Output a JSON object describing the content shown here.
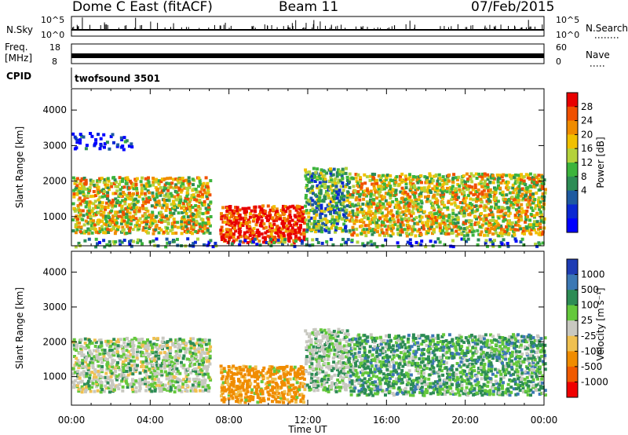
{
  "header": {
    "station": "Dome C East (fitACF)",
    "beam": "Beam 11",
    "date": "07/Feb/2015"
  },
  "strips": {
    "nsky_label": "N.Sky",
    "nsky_ticks": [
      "10^5",
      "10^0"
    ],
    "nsky_right_ticks": [
      "10^5",
      "10^0"
    ],
    "nsearch_label": "N.Search",
    "freq_label": "Freq.",
    "freq_unit": "[MHz]",
    "freq_ticks": [
      "18",
      "8"
    ],
    "nave_label": "Nave",
    "nave_ticks": [
      "60",
      "0"
    ],
    "cpid_label": "CPID",
    "cpid_value": "twofsound 3501"
  },
  "chart_data": [
    {
      "type": "heatmap",
      "name": "power",
      "ylabel": "Slant Range [km]",
      "xlabel": "Time UT",
      "x_ticks": [
        "00:00",
        "04:00",
        "08:00",
        "12:00",
        "16:00",
        "20:00",
        "00:00"
      ],
      "xlim_hours": [
        0,
        24
      ],
      "y_ticks": [
        "1000",
        "2000",
        "3000",
        "4000"
      ],
      "ylim_km": [
        180,
        4600
      ],
      "colorbar_label": "Power [dB]",
      "colorbar_ticks": [
        "28",
        "24",
        "20",
        "16",
        "12",
        "8",
        "4"
      ],
      "colorbar_colors": [
        "#e80000",
        "#f05000",
        "#f08c00",
        "#f0c000",
        "#b4d23c",
        "#3cb43c",
        "#2d8c55",
        "#1e5aa0",
        "#0a28d2",
        "#0000ff"
      ],
      "echo_regions": [
        {
          "t0": 0.0,
          "t1": 7.0,
          "r0": 560,
          "r1": 2150,
          "level": 0.62
        },
        {
          "t0": 7.5,
          "t1": 11.8,
          "r0": 300,
          "r1": 1350,
          "level": 0.95
        },
        {
          "t0": 11.8,
          "t1": 14.0,
          "r0": 600,
          "r1": 2400,
          "level": 0.4
        },
        {
          "t0": 14.0,
          "t1": 24.0,
          "r0": 500,
          "r1": 2250,
          "level": 0.6
        },
        {
          "t0": 0.0,
          "t1": 3.0,
          "r0": 2900,
          "r1": 3400,
          "level": 0.15
        },
        {
          "t0": 0.0,
          "t1": 24.0,
          "r0": 190,
          "r1": 420,
          "level": 0.3
        }
      ]
    },
    {
      "type": "heatmap",
      "name": "velocity",
      "ylabel": "Slant Range [km]",
      "xlabel": "Time UT",
      "x_ticks": [
        "00:00",
        "04:00",
        "08:00",
        "12:00",
        "16:00",
        "20:00",
        "00:00"
      ],
      "xlim_hours": [
        0,
        24
      ],
      "y_ticks": [
        "1000",
        "2000",
        "3000",
        "4000"
      ],
      "ylim_km": [
        180,
        4600
      ],
      "colorbar_label": "Velocity [m s⁻¹]",
      "colorbar_ticks": [
        "1000",
        "500",
        "100",
        "25",
        "-25",
        "-100",
        "-500",
        "-1000"
      ],
      "colorbar_colors": [
        "#1e3cb4",
        "#3c78b4",
        "#2d8c55",
        "#64c83c",
        "#c8c8c0",
        "#f0c050",
        "#f08c00",
        "#f05a00",
        "#f00000"
      ],
      "echo_regions": [
        {
          "t0": 0.0,
          "t1": 7.0,
          "r0": 600,
          "r1": 2150,
          "mode": "mixed"
        },
        {
          "t0": 7.5,
          "t1": 11.8,
          "r0": 300,
          "r1": 1350,
          "mode": "receding"
        },
        {
          "t0": 11.8,
          "t1": 14.0,
          "r0": 600,
          "r1": 2400,
          "mode": "near-zero"
        },
        {
          "t0": 14.0,
          "t1": 24.0,
          "r0": 500,
          "r1": 2250,
          "mode": "approaching"
        }
      ]
    }
  ]
}
